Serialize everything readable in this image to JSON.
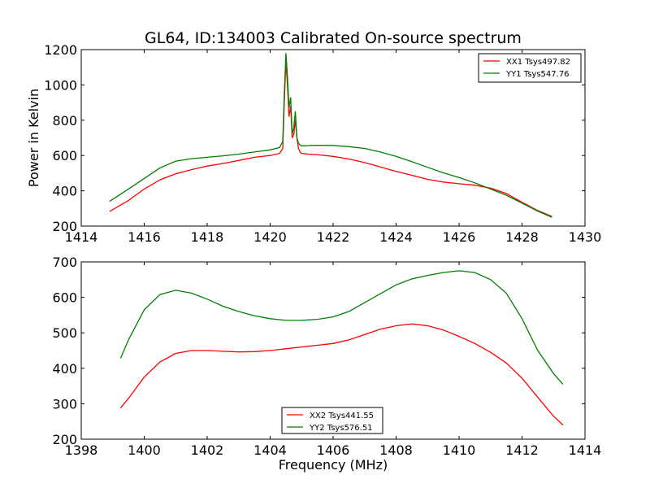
{
  "title": "GL64, ID:134003 Calibrated On-source spectrum",
  "colors": {
    "red": "#ff0000",
    "green": "#008000",
    "axis": "#000000"
  },
  "chart_data": [
    {
      "type": "line",
      "title": "GL64, ID:134003 Calibrated On-source spectrum",
      "xlabel": "",
      "ylabel": "Power in Kelvin",
      "xlim": [
        1414,
        1430
      ],
      "ylim": [
        200,
        1200
      ],
      "x_ticks": [
        1414,
        1416,
        1418,
        1420,
        1422,
        1424,
        1426,
        1428,
        1430
      ],
      "y_ticks": [
        200,
        400,
        600,
        800,
        1000,
        1200
      ],
      "legend_placement": "top-right",
      "grid": false,
      "series": [
        {
          "name": "XX1 Tsys497.82",
          "color": "#ff0000",
          "x": [
            1414.9,
            1415.5,
            1416.0,
            1416.5,
            1417.0,
            1417.5,
            1418.0,
            1418.5,
            1419.0,
            1419.5,
            1420.0,
            1420.3,
            1420.4,
            1420.45,
            1420.5,
            1420.55,
            1420.6,
            1420.65,
            1420.7,
            1420.75,
            1420.8,
            1420.85,
            1420.9,
            1420.95,
            1421.0,
            1421.1,
            1421.2,
            1421.5,
            1422.0,
            1422.5,
            1423.0,
            1423.5,
            1424.0,
            1424.5,
            1425.0,
            1425.5,
            1426.0,
            1426.5,
            1427.0,
            1427.5,
            1428.0,
            1428.5,
            1428.95
          ],
          "y": [
            283,
            345,
            410,
            462,
            497,
            520,
            540,
            555,
            572,
            590,
            600,
            612,
            640,
            900,
            1130,
            1000,
            820,
            880,
            700,
            720,
            800,
            700,
            640,
            620,
            612,
            610,
            608,
            605,
            595,
            580,
            560,
            535,
            510,
            488,
            465,
            450,
            440,
            432,
            415,
            385,
            335,
            288,
            255
          ]
        },
        {
          "name": "YY1 Tsys547.76",
          "color": "#008000",
          "x": [
            1414.9,
            1415.5,
            1416.0,
            1416.5,
            1417.0,
            1417.5,
            1418.0,
            1418.5,
            1419.0,
            1419.5,
            1420.0,
            1420.3,
            1420.4,
            1420.45,
            1420.5,
            1420.55,
            1420.6,
            1420.65,
            1420.7,
            1420.75,
            1420.8,
            1420.85,
            1420.9,
            1420.95,
            1421.0,
            1421.1,
            1421.2,
            1421.5,
            1422.0,
            1422.5,
            1423.0,
            1423.5,
            1424.0,
            1424.5,
            1425.0,
            1425.5,
            1426.0,
            1426.5,
            1427.0,
            1427.5,
            1428.0,
            1428.5,
            1428.95
          ],
          "y": [
            340,
            410,
            470,
            530,
            568,
            582,
            590,
            598,
            608,
            620,
            632,
            645,
            680,
            950,
            1180,
            1050,
            870,
            930,
            720,
            760,
            850,
            700,
            670,
            660,
            655,
            655,
            656,
            658,
            657,
            650,
            640,
            620,
            595,
            565,
            533,
            502,
            475,
            445,
            410,
            375,
            330,
            285,
            250
          ]
        }
      ]
    },
    {
      "type": "line",
      "title": "",
      "xlabel": "Frequency (MHz)",
      "ylabel": "",
      "xlim": [
        1398,
        1414
      ],
      "ylim": [
        200,
        700
      ],
      "x_ticks": [
        1398,
        1400,
        1402,
        1404,
        1406,
        1408,
        1410,
        1412,
        1414
      ],
      "y_ticks": [
        200,
        300,
        400,
        500,
        600,
        700
      ],
      "legend_placement": "lower-center",
      "grid": false,
      "series": [
        {
          "name": "XX2 Tsys441.55",
          "color": "#ff0000",
          "x": [
            1399.25,
            1399.5,
            1400.0,
            1400.5,
            1401.0,
            1401.5,
            1402.0,
            1402.5,
            1403.0,
            1403.5,
            1404.0,
            1404.5,
            1405.0,
            1405.5,
            1406.0,
            1406.5,
            1407.0,
            1407.5,
            1408.0,
            1408.5,
            1409.0,
            1409.5,
            1410.0,
            1410.5,
            1411.0,
            1411.5,
            1412.0,
            1412.5,
            1413.0,
            1413.3
          ],
          "y": [
            288,
            315,
            375,
            418,
            442,
            450,
            450,
            448,
            446,
            447,
            450,
            455,
            460,
            465,
            470,
            480,
            495,
            510,
            520,
            525,
            520,
            508,
            490,
            470,
            445,
            415,
            372,
            318,
            265,
            240
          ]
        },
        {
          "name": "YY2 Tsys576.51",
          "color": "#008000",
          "x": [
            1399.25,
            1399.5,
            1400.0,
            1400.5,
            1401.0,
            1401.5,
            1402.0,
            1402.5,
            1403.0,
            1403.5,
            1404.0,
            1404.5,
            1405.0,
            1405.5,
            1406.0,
            1406.5,
            1407.0,
            1407.5,
            1408.0,
            1408.5,
            1409.0,
            1409.5,
            1410.0,
            1410.5,
            1411.0,
            1411.5,
            1412.0,
            1412.5,
            1413.0,
            1413.3
          ],
          "y": [
            428,
            480,
            565,
            608,
            620,
            612,
            595,
            575,
            560,
            548,
            540,
            535,
            535,
            538,
            545,
            560,
            585,
            610,
            635,
            652,
            662,
            670,
            675,
            670,
            650,
            612,
            540,
            450,
            385,
            355
          ]
        }
      ]
    }
  ]
}
